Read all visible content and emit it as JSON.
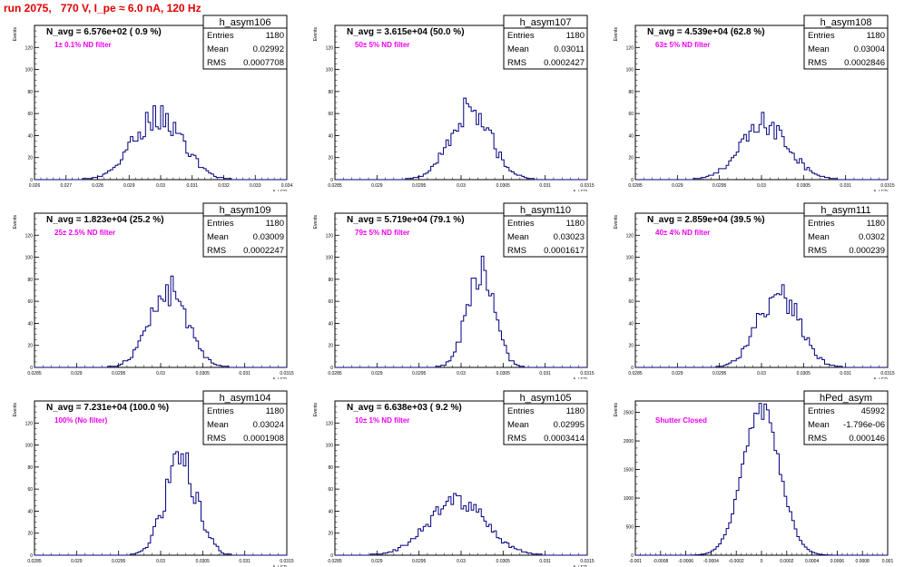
{
  "page": {
    "title": "run 2075,   770 V, I_pe ≈ 6.0 nA, 120 Hz",
    "colors": {
      "title": "#e00000",
      "histogram": "#000080",
      "annotation": "#ee00ee",
      "axes": "#000000"
    }
  },
  "chart_data": [
    {
      "type": "histogram",
      "name": "h_asym106",
      "header": "N_avg = 6.576e+02 ( 0.9 %)",
      "annotation": "1± 0.1% ND filter",
      "stats": [
        {
          "label": "Entries",
          "value": "1180"
        },
        {
          "label": "Mean",
          "value": "0.02992"
        },
        {
          "label": "RMS",
          "value": "0.0007708"
        }
      ],
      "xlabel": "A_LED",
      "ylabel": "Events",
      "xlim": [
        0.026,
        0.034
      ],
      "ylim": [
        0,
        140
      ],
      "xticks": [
        "0.026",
        "0.027",
        "0.028",
        "0.029",
        "0.03",
        "0.031",
        "0.032",
        "0.033",
        "0.034"
      ],
      "yticks": [
        "0",
        "20",
        "40",
        "60",
        "80",
        "100",
        "120"
      ],
      "mean": 0.02992,
      "rms": 0.0007708,
      "entries": 1180,
      "peak": 58,
      "bins": 100
    },
    {
      "type": "histogram",
      "name": "h_asym107",
      "header": "N_avg = 3.615e+04 (50.0 %)",
      "annotation": "50± 5% ND filter",
      "stats": [
        {
          "label": "Entries",
          "value": "1180"
        },
        {
          "label": "Mean",
          "value": "0.03011"
        },
        {
          "label": "RMS",
          "value": "0.0002427"
        }
      ],
      "xlabel": "A_LED",
      "ylabel": "Events",
      "xlim": [
        0.0285,
        0.0315
      ],
      "ylim": [
        0,
        140
      ],
      "xticks": [
        "0.0285",
        "0.029",
        "0.0295",
        "0.03",
        "0.0305",
        "0.031",
        "0.0315"
      ],
      "yticks": [
        "0",
        "20",
        "40",
        "60",
        "80",
        "100",
        "120"
      ],
      "mean": 0.03011,
      "rms": 0.0002427,
      "entries": 1180,
      "peak": 64,
      "bins": 100
    },
    {
      "type": "histogram",
      "name": "h_asym108",
      "header": "N_avg = 4.539e+04 (62.8 %)",
      "annotation": "63± 5% ND filter",
      "stats": [
        {
          "label": "Entries",
          "value": "1180"
        },
        {
          "label": "Mean",
          "value": "0.03004"
        },
        {
          "label": "RMS",
          "value": "0.0002846"
        }
      ],
      "xlabel": "A_LED",
      "ylabel": "Events",
      "xlim": [
        0.0285,
        0.0315
      ],
      "ylim": [
        0,
        140
      ],
      "xticks": [
        "0.0285",
        "0.029",
        "0.0295",
        "0.03",
        "0.0305",
        "0.031",
        "0.0315"
      ],
      "yticks": [
        "0",
        "20",
        "40",
        "60",
        "80",
        "100",
        "120"
      ],
      "mean": 0.03004,
      "rms": 0.0002846,
      "entries": 1180,
      "peak": 50,
      "bins": 100
    },
    {
      "type": "histogram",
      "name": "h_asym109",
      "header": "N_avg = 1.823e+04 (25.2 %)",
      "annotation": "25± 2.5% ND filter",
      "stats": [
        {
          "label": "Entries",
          "value": "1180"
        },
        {
          "label": "Mean",
          "value": "0.03009"
        },
        {
          "label": "RMS",
          "value": "0.0002247"
        }
      ],
      "xlabel": "A_LED",
      "ylabel": "Events",
      "xlim": [
        0.0285,
        0.0315
      ],
      "ylim": [
        0,
        140
      ],
      "xticks": [
        "0.0285",
        "0.029",
        "0.0295",
        "0.03",
        "0.0305",
        "0.031",
        "0.0315"
      ],
      "yticks": [
        "0",
        "20",
        "40",
        "60",
        "80",
        "100",
        "120"
      ],
      "mean": 0.03009,
      "rms": 0.0002247,
      "entries": 1180,
      "peak": 70,
      "bins": 100
    },
    {
      "type": "histogram",
      "name": "h_asym110",
      "header": "N_avg = 5.719e+04 (79.1 %)",
      "annotation": "79± 5% ND filter",
      "stats": [
        {
          "label": "Entries",
          "value": "1180"
        },
        {
          "label": "Mean",
          "value": "0.03023"
        },
        {
          "label": "RMS",
          "value": "0.0001617"
        }
      ],
      "xlabel": "A_LED",
      "ylabel": "Events",
      "xlim": [
        0.0285,
        0.0315
      ],
      "ylim": [
        0,
        140
      ],
      "xticks": [
        "0.0285",
        "0.029",
        "0.0295",
        "0.03",
        "0.0305",
        "0.031",
        "0.0315"
      ],
      "yticks": [
        "0",
        "20",
        "40",
        "60",
        "80",
        "100",
        "120"
      ],
      "mean": 0.03023,
      "rms": 0.0001617,
      "entries": 1180,
      "peak": 88,
      "bins": 100
    },
    {
      "type": "histogram",
      "name": "h_asym111",
      "header": "N_avg = 2.859e+04 (39.5 %)",
      "annotation": "40± 4% ND filter",
      "stats": [
        {
          "label": "Entries",
          "value": "1180"
        },
        {
          "label": "Mean",
          "value": "0.0302"
        },
        {
          "label": "RMS",
          "value": "0.000239"
        }
      ],
      "xlabel": "A_LED",
      "ylabel": "Events",
      "xlim": [
        0.0285,
        0.0315
      ],
      "ylim": [
        0,
        140
      ],
      "xticks": [
        "0.0285",
        "0.029",
        "0.0295",
        "0.03",
        "0.0305",
        "0.031",
        "0.0315"
      ],
      "yticks": [
        "0",
        "20",
        "40",
        "60",
        "80",
        "100",
        "120"
      ],
      "mean": 0.0302,
      "rms": 0.000239,
      "entries": 1180,
      "peak": 70,
      "bins": 100
    },
    {
      "type": "histogram",
      "name": "h_asym104",
      "header": "N_avg = 7.231e+04 (100.0 %)",
      "annotation": "100% (No filter)",
      "stats": [
        {
          "label": "Entries",
          "value": "1180"
        },
        {
          "label": "Mean",
          "value": "0.03024"
        },
        {
          "label": "RMS",
          "value": "0.0001908"
        }
      ],
      "xlabel": "A_LED",
      "ylabel": "Events",
      "xlim": [
        0.0285,
        0.0315
      ],
      "ylim": [
        0,
        140
      ],
      "xticks": [
        "0.0285",
        "0.029",
        "0.0295",
        "0.03",
        "0.0305",
        "0.031",
        "0.0315"
      ],
      "yticks": [
        "0",
        "20",
        "40",
        "60",
        "80",
        "100",
        "120"
      ],
      "mean": 0.03024,
      "rms": 0.0001908,
      "entries": 1180,
      "peak": 84,
      "bins": 100
    },
    {
      "type": "histogram",
      "name": "h_asym105",
      "header": "N_avg = 6.638e+03 ( 9.2 %)",
      "annotation": "10± 1% ND filter",
      "stats": [
        {
          "label": "Entries",
          "value": "1180"
        },
        {
          "label": "Mean",
          "value": "0.02995"
        },
        {
          "label": "RMS",
          "value": "0.0003414"
        }
      ],
      "xlabel": "A_LED",
      "ylabel": "Events",
      "xlim": [
        0.0285,
        0.0315
      ],
      "ylim": [
        0,
        140
      ],
      "xticks": [
        "0.0285",
        "0.029",
        "0.0295",
        "0.03",
        "0.0305",
        "0.031",
        "0.0315"
      ],
      "yticks": [
        "0",
        "20",
        "40",
        "60",
        "80",
        "100",
        "120"
      ],
      "mean": 0.02995,
      "rms": 0.0003414,
      "entries": 1180,
      "peak": 48,
      "bins": 100
    },
    {
      "type": "histogram",
      "name": "hPed_asym",
      "header": "",
      "annotation": "Shutter Closed",
      "stats": [
        {
          "label": "Entries",
          "value": "45992"
        },
        {
          "label": "Mean",
          "value": "-1.796e-06"
        },
        {
          "label": "RMS",
          "value": "0.000146"
        }
      ],
      "xlabel": "",
      "ylabel": "Events",
      "xlim": [
        -0.001,
        0.001
      ],
      "ylim": [
        0,
        2700
      ],
      "xticks": [
        "-0.001",
        "-0.0008",
        "-0.0006",
        "-0.0004",
        "-0.0002",
        "0",
        "0.0002",
        "0.0004",
        "0.0006",
        "0.0008",
        "0.001"
      ],
      "yticks": [
        "0",
        "500",
        "1000",
        "1500",
        "2000",
        "2500"
      ],
      "mean": -1.796e-06,
      "rms": 0.000146,
      "entries": 45992,
      "peak": 2560,
      "bins": 100
    }
  ]
}
